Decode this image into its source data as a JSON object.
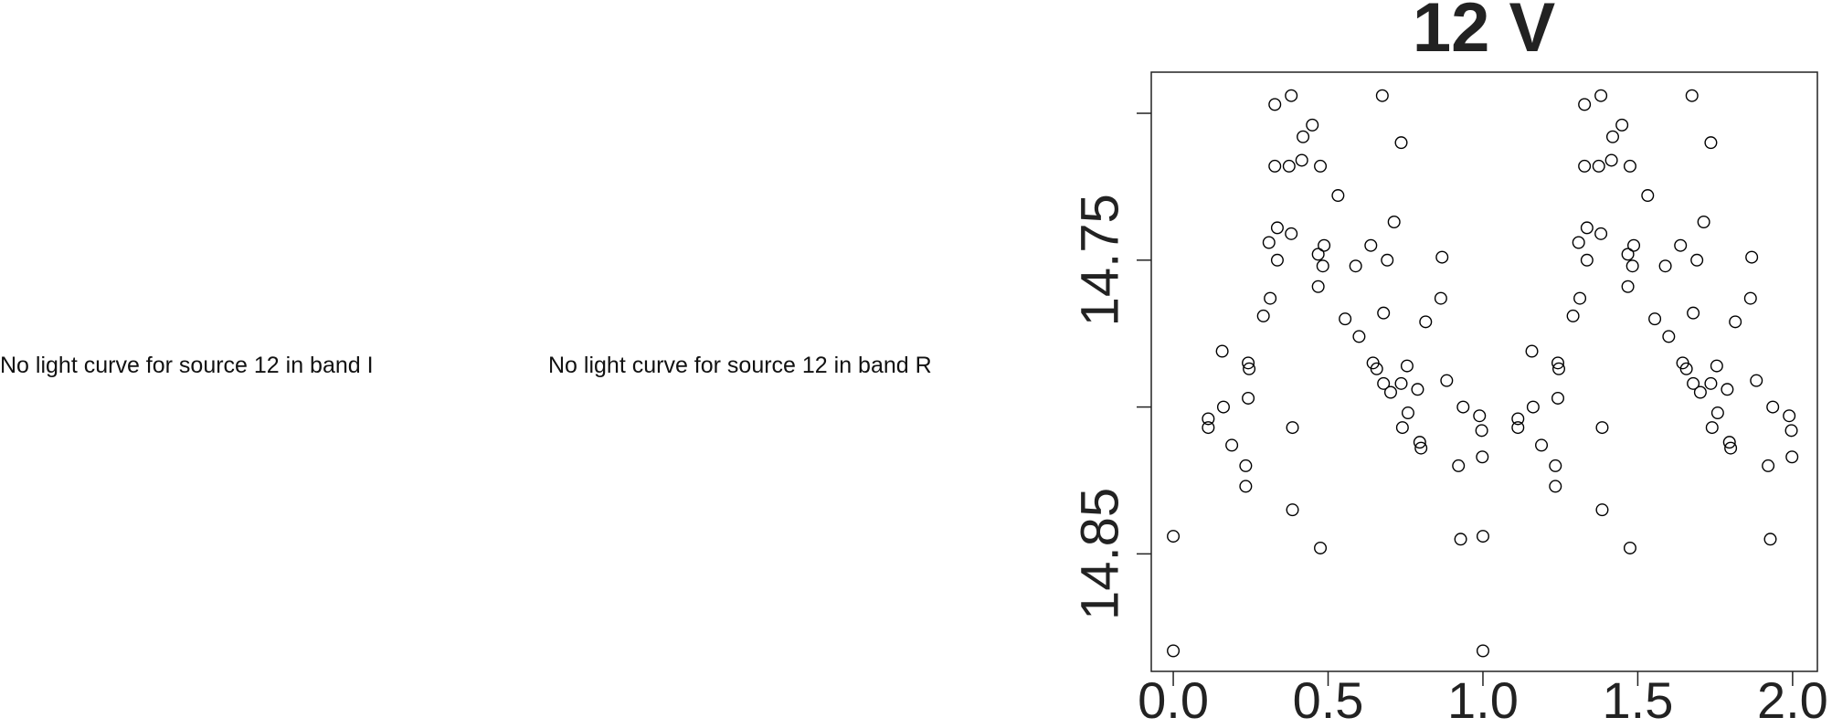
{
  "messages": [
    "No light curve for source 12 in band I",
    "No light curve for source 12 in band R"
  ],
  "chart_data": {
    "type": "scatter",
    "title": "12 V",
    "x": [
      0.0,
      0.0,
      0.113,
      0.113,
      0.158,
      0.162,
      0.189,
      0.234,
      0.234,
      0.242,
      0.245,
      0.242,
      0.291,
      0.309,
      0.313,
      0.328,
      0.328,
      0.336,
      0.336,
      0.374,
      0.381,
      0.381,
      0.385,
      0.385,
      0.415,
      0.419,
      0.449,
      0.468,
      0.468,
      0.475,
      0.483,
      0.487,
      0.475,
      0.532,
      0.555,
      0.589,
      0.6,
      0.638,
      0.645,
      0.657,
      0.675,
      0.679,
      0.679,
      0.691,
      0.702,
      0.713,
      0.736,
      0.736,
      0.74,
      0.755,
      0.758,
      0.789,
      0.796,
      0.8,
      0.815,
      0.864,
      0.868,
      0.883,
      0.921,
      0.928,
      0.936,
      0.989,
      0.996,
      0.998,
      1.0,
      1.0,
      1.113,
      1.113,
      1.158,
      1.162,
      1.189,
      1.234,
      1.234,
      1.242,
      1.245,
      1.242,
      1.291,
      1.309,
      1.313,
      1.328,
      1.328,
      1.336,
      1.336,
      1.374,
      1.381,
      1.381,
      1.385,
      1.385,
      1.415,
      1.419,
      1.449,
      1.468,
      1.468,
      1.475,
      1.483,
      1.487,
      1.475,
      1.532,
      1.555,
      1.589,
      1.6,
      1.638,
      1.645,
      1.657,
      1.675,
      1.679,
      1.679,
      1.691,
      1.702,
      1.713,
      1.736,
      1.736,
      1.74,
      1.755,
      1.758,
      1.789,
      1.796,
      1.8,
      1.815,
      1.864,
      1.868,
      1.883,
      1.921,
      1.928,
      1.936,
      1.989,
      1.996,
      1.998
    ],
    "values": [
      14.844,
      14.883,
      14.804,
      14.807,
      14.781,
      14.8,
      14.813,
      14.82,
      14.827,
      14.785,
      14.787,
      14.797,
      14.769,
      14.744,
      14.763,
      14.697,
      14.718,
      14.739,
      14.75,
      14.718,
      14.694,
      14.741,
      14.807,
      14.835,
      14.716,
      14.708,
      14.704,
      14.748,
      14.759,
      14.718,
      14.752,
      14.745,
      14.848,
      14.728,
      14.77,
      14.752,
      14.776,
      14.745,
      14.785,
      14.787,
      14.694,
      14.768,
      14.792,
      14.75,
      14.795,
      14.737,
      14.71,
      14.792,
      14.807,
      14.786,
      14.802,
      14.794,
      14.812,
      14.814,
      14.771,
      14.763,
      14.749,
      14.791,
      14.82,
      14.845,
      14.8,
      14.803,
      14.808,
      14.817,
      14.844,
      14.883,
      14.804,
      14.807,
      14.781,
      14.8,
      14.813,
      14.82,
      14.827,
      14.785,
      14.787,
      14.797,
      14.769,
      14.744,
      14.763,
      14.697,
      14.718,
      14.739,
      14.75,
      14.718,
      14.694,
      14.741,
      14.807,
      14.835,
      14.716,
      14.708,
      14.704,
      14.748,
      14.759,
      14.718,
      14.752,
      14.745,
      14.848,
      14.728,
      14.77,
      14.752,
      14.776,
      14.745,
      14.785,
      14.787,
      14.694,
      14.768,
      14.792,
      14.75,
      14.795,
      14.737,
      14.71,
      14.792,
      14.807,
      14.786,
      14.802,
      14.794,
      14.812,
      14.814,
      14.771,
      14.763,
      14.749,
      14.791,
      14.82,
      14.845,
      14.8,
      14.803,
      14.808,
      14.817
    ],
    "color": "#000000",
    "xlim": [
      -0.071,
      2.08
    ],
    "xticks": [
      {
        "value": 0,
        "label": "0.0"
      },
      {
        "value": 0.5,
        "label": "0.5"
      },
      {
        "value": 1,
        "label": "1.0"
      },
      {
        "value": 1.5,
        "label": "1.5"
      },
      {
        "value": 2,
        "label": "2.0"
      }
    ],
    "ylim": [
      14.89,
      14.686
    ],
    "yticks": [
      {
        "value": 14.7,
        "label": null
      },
      14.75,
      {
        "value": 14.8,
        "label": null
      },
      14.85
    ]
  }
}
